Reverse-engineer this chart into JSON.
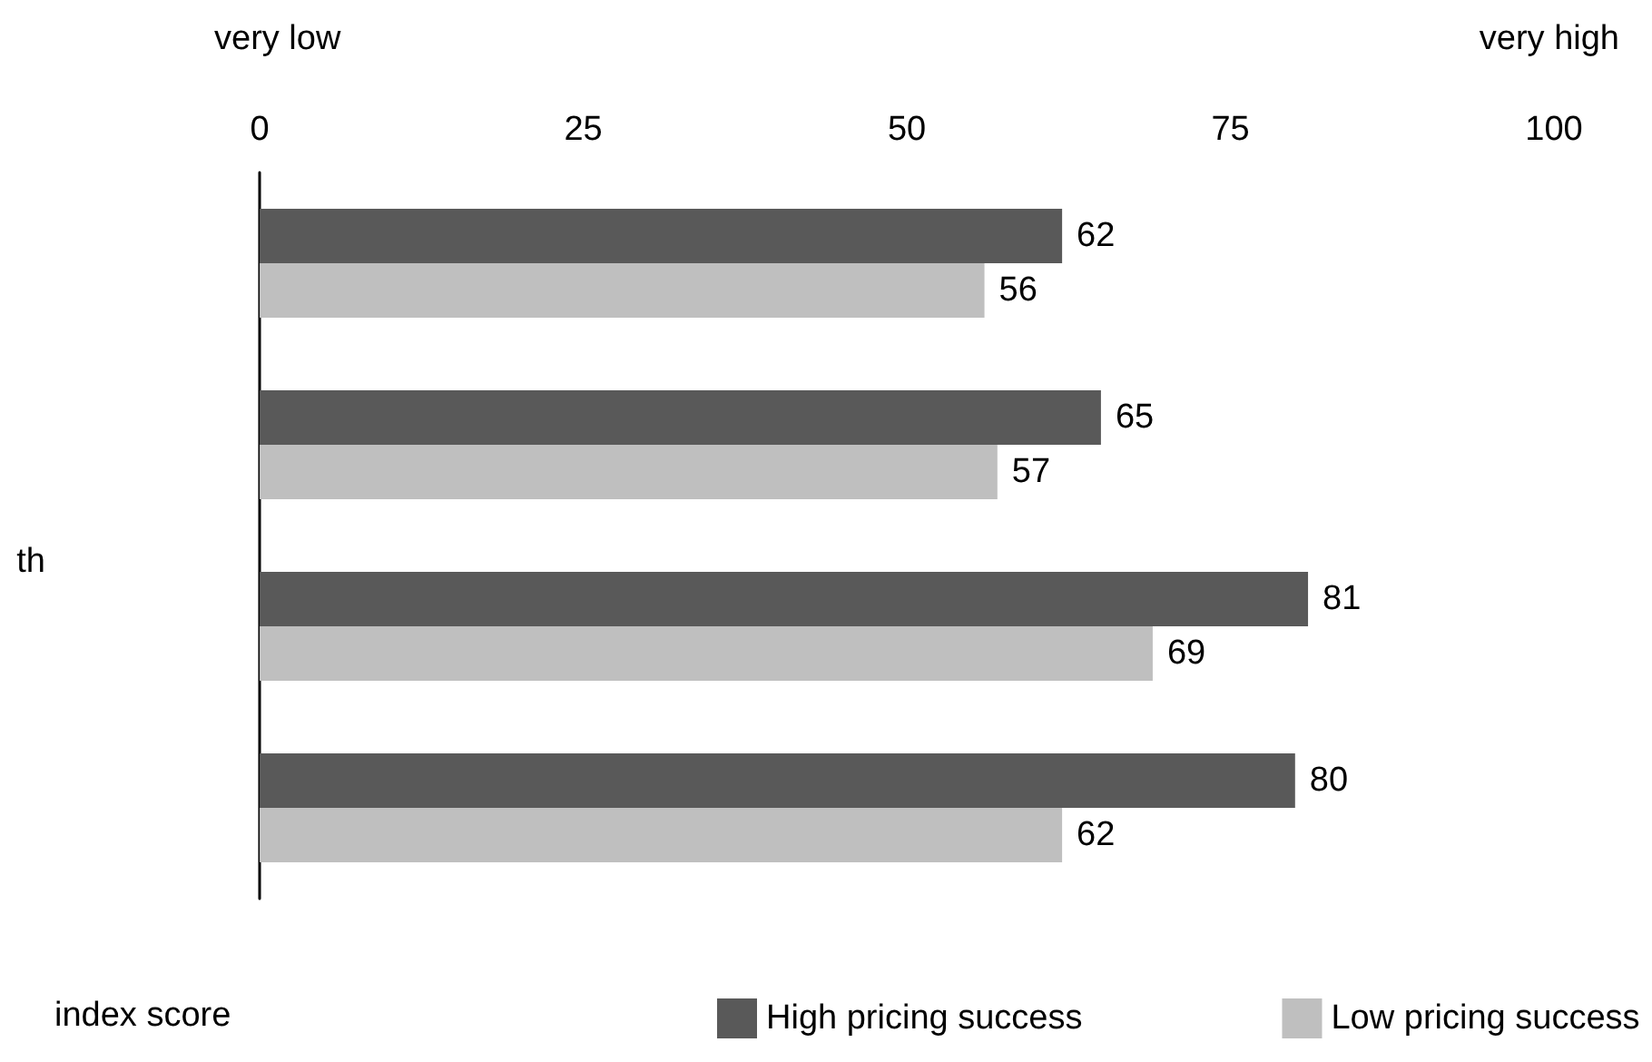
{
  "chart_data": {
    "type": "bar",
    "orientation": "horizontal",
    "categories": [
      null,
      null,
      null,
      null
    ],
    "series": [
      {
        "name": "High pricing success",
        "color": "#595959",
        "values": [
          62,
          65,
          81,
          80
        ]
      },
      {
        "name": "Low pricing success",
        "color": "#bfbfbf",
        "values": [
          56,
          57,
          69,
          62
        ]
      }
    ],
    "xlim": [
      0,
      100
    ],
    "xticks": [
      0,
      25,
      50,
      75,
      100
    ],
    "data_labels": true,
    "grid": false,
    "legend": "bottom",
    "annotations": [
      "very low",
      "very high",
      "index score",
      "th"
    ]
  }
}
